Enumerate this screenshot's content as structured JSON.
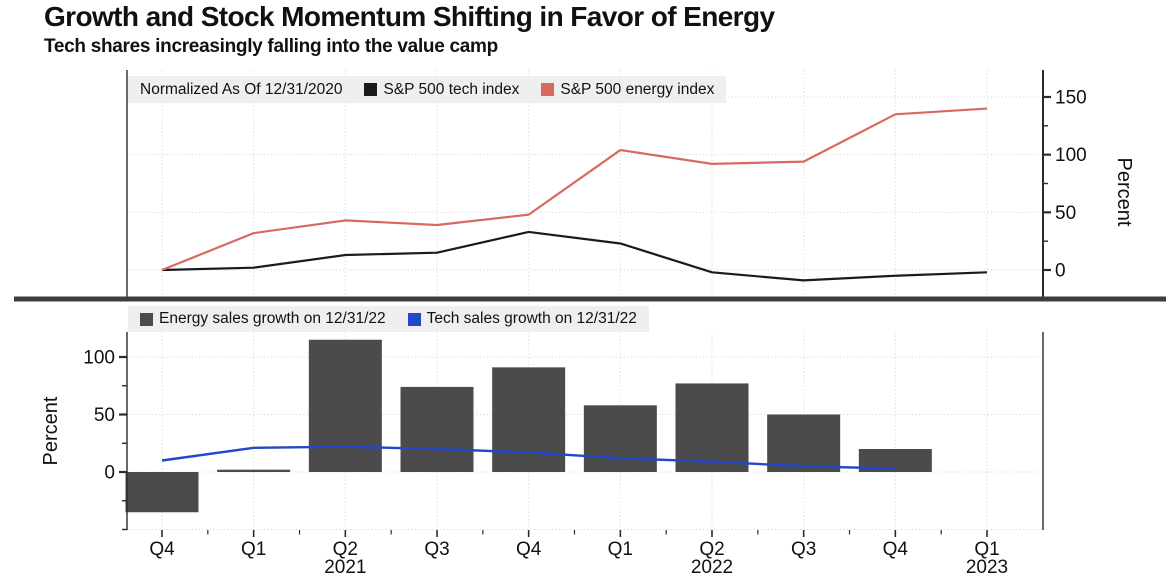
{
  "title": "Growth and Stock Momentum Shifting in Favor of Energy",
  "subtitle": "Tech shares increasingly falling into the value camp",
  "chart_data": [
    {
      "type": "line",
      "note": "Normalized As Of 12/31/2020",
      "categories": [
        "Q4 2020",
        "Q1 2021",
        "Q2 2021",
        "Q3 2021",
        "Q4 2021",
        "Q1 2022",
        "Q2 2022",
        "Q3 2022",
        "Q4 2022",
        "Q1 2023"
      ],
      "series": [
        {
          "name": "S&P 500 tech index",
          "color": "#1b1b1b",
          "values": [
            0,
            2,
            13,
            15,
            33,
            23,
            -2,
            -9,
            -5,
            -2
          ]
        },
        {
          "name": "S&P 500 energy index",
          "color": "#d9695f",
          "values": [
            0,
            32,
            43,
            39,
            48,
            104,
            92,
            94,
            135,
            140
          ]
        }
      ],
      "ylabel": "Percent",
      "yaxis_side": "right",
      "yticks": [
        0,
        50,
        100,
        150
      ],
      "ylim": [
        -23,
        173
      ],
      "grid": true,
      "legend_position": "top-left"
    },
    {
      "type": "bar+line",
      "categories": [
        "Q4 2020",
        "Q1 2021",
        "Q2 2021",
        "Q3 2021",
        "Q4 2021",
        "Q1 2022",
        "Q2 2022",
        "Q3 2022",
        "Q4 2022",
        "Q1 2023"
      ],
      "series": [
        {
          "name": "Energy sales growth on 12/31/22",
          "type": "bar",
          "color": "#4b4b4b",
          "values": [
            -35,
            2,
            115,
            74,
            91,
            58,
            77,
            50,
            20,
            null
          ]
        },
        {
          "name": "Tech sales growth on 12/31/22",
          "type": "line",
          "color": "#2447c9",
          "values": [
            10,
            21,
            22,
            20,
            17,
            12,
            9,
            5,
            3,
            null
          ]
        }
      ],
      "ylabel": "Percent",
      "yaxis_side": "left",
      "yticks": [
        0,
        50,
        100
      ],
      "ylim": [
        -50,
        122
      ],
      "grid": true,
      "legend_position": "top-left",
      "xtick_labels": [
        "Q4",
        "Q1",
        "Q2",
        "Q3",
        "Q4",
        "Q1",
        "Q2",
        "Q3",
        "Q4",
        "Q1"
      ],
      "year_labels": [
        {
          "index": 2,
          "label": "2021"
        },
        {
          "index": 6,
          "label": "2022"
        },
        {
          "index": 9,
          "label": "2023"
        }
      ]
    }
  ]
}
